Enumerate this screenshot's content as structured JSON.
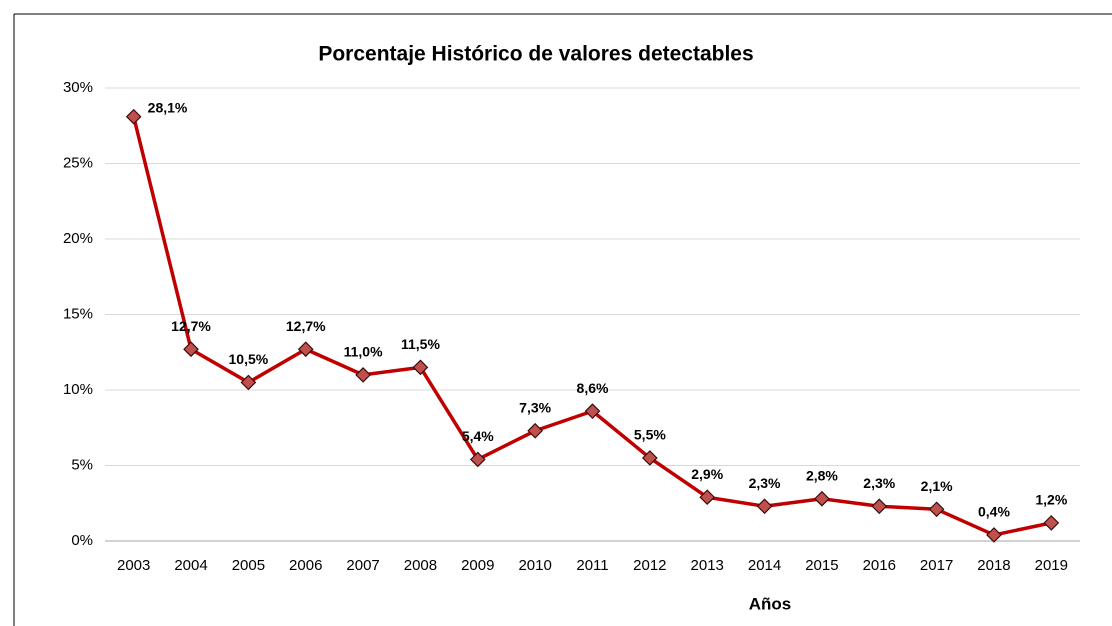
{
  "chart_data": {
    "type": "line",
    "title": "Porcentaje Histórico de valores detectables",
    "x_label": "Años",
    "categories": [
      "2003",
      "2004",
      "2005",
      "2006",
      "2007",
      "2008",
      "2009",
      "2010",
      "2011",
      "2012",
      "2013",
      "2014",
      "2015",
      "2016",
      "2017",
      "2018",
      "2019"
    ],
    "series": [
      {
        "name": "Porcentaje",
        "color": "#c00000",
        "marker_color": "#c0504d",
        "values": [
          28.1,
          12.7,
          10.5,
          12.7,
          11.0,
          11.5,
          5.4,
          7.3,
          8.6,
          5.5,
          2.9,
          2.3,
          2.8,
          2.3,
          2.1,
          0.4,
          1.2
        ],
        "value_labels": [
          "28,1%",
          "12,7%",
          "10,5%",
          "12,7%",
          "11,0%",
          "11,5%",
          "5,4%",
          "7,3%",
          "8,6%",
          "5,5%",
          "2,9%",
          "2,3%",
          "2,8%",
          "2,3%",
          "2,1%",
          "0,4%",
          "1,2%"
        ]
      }
    ],
    "ylim": [
      0,
      30
    ],
    "yticks": [
      {
        "value": 0,
        "label": "0%"
      },
      {
        "value": 5,
        "label": "5%"
      },
      {
        "value": 10,
        "label": "10%"
      },
      {
        "value": 15,
        "label": "15%"
      },
      {
        "value": 20,
        "label": "20%"
      },
      {
        "value": 25,
        "label": "25%"
      },
      {
        "value": 30,
        "label": "30%"
      }
    ],
    "grid": true
  }
}
